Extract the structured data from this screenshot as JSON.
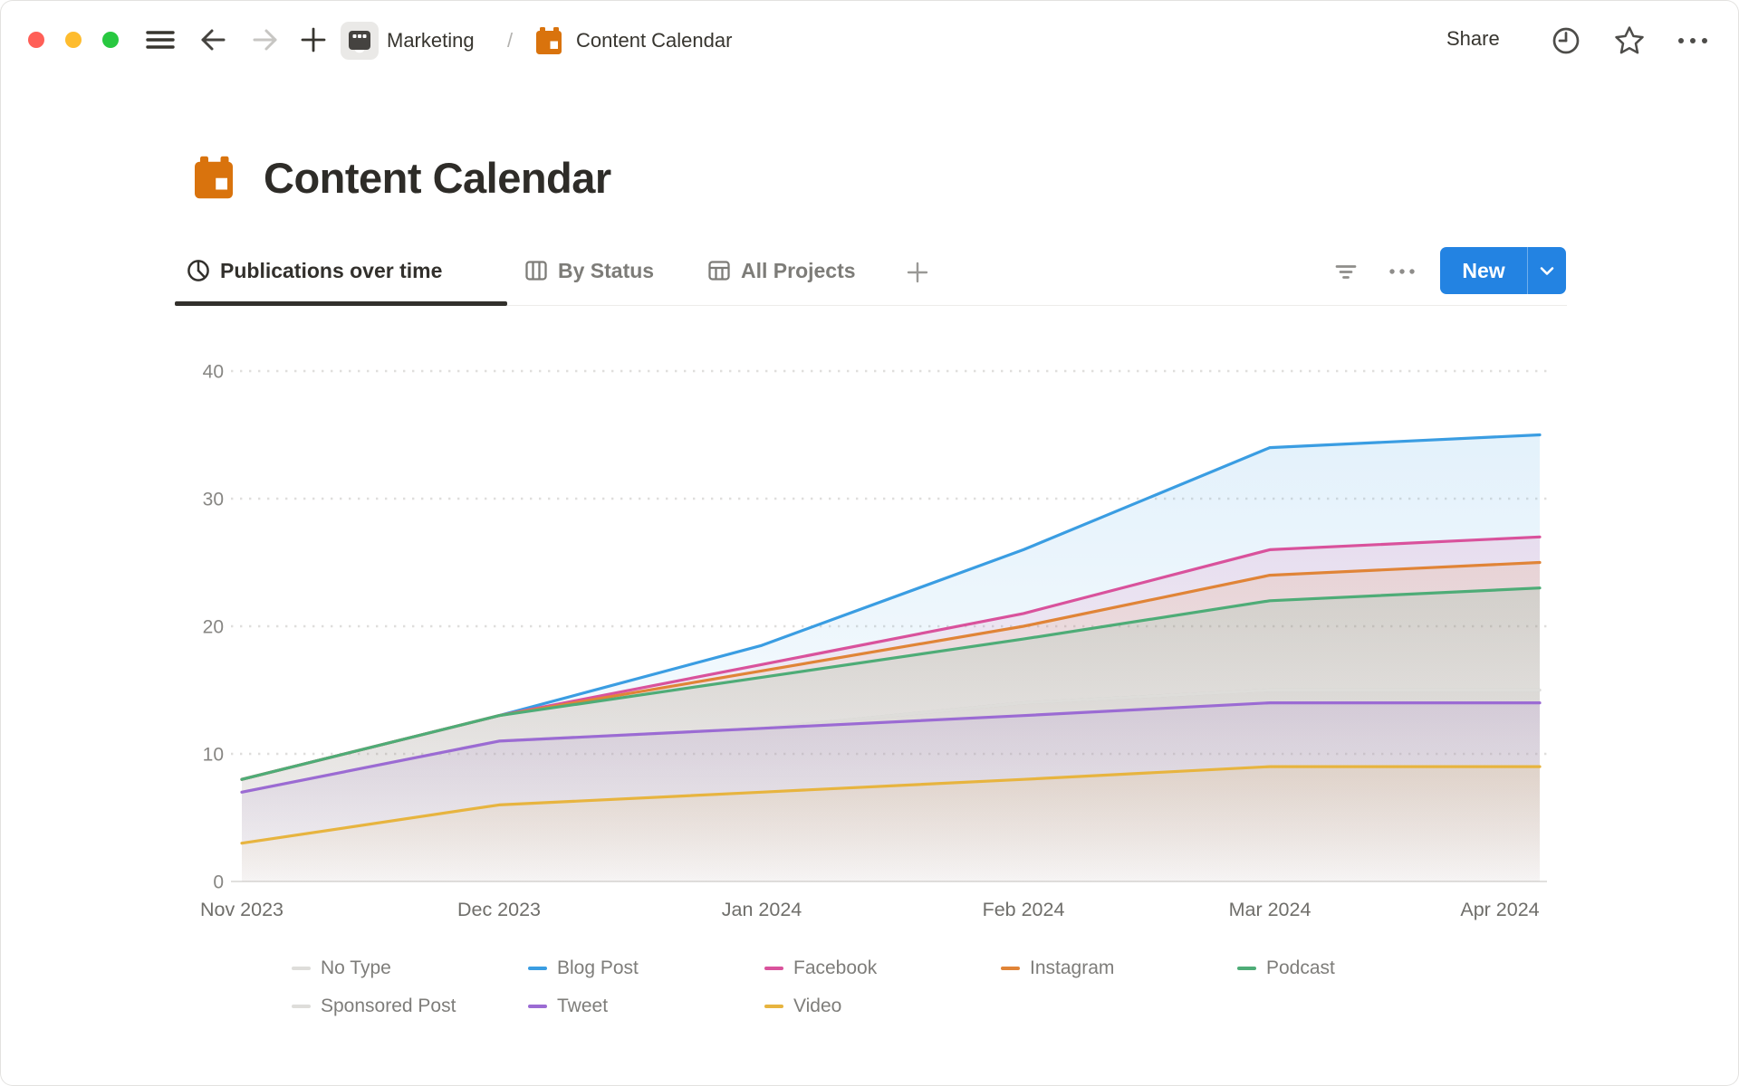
{
  "window": {
    "traffic_lights": [
      "#FF5F57",
      "#FEBC2E",
      "#28C840"
    ],
    "toolbar_icons": [
      "hamburger",
      "back-arrow",
      "forward-arrow",
      "plus",
      "marketing-page",
      "calendar"
    ],
    "topright_icons": [
      "history-clock",
      "star",
      "more-ellipsis"
    ]
  },
  "toolbar": {
    "breadcrumb": {
      "workspace": "Marketing",
      "separator": "/",
      "page": "Content Calendar"
    },
    "share_label": "Share"
  },
  "page": {
    "title": "Content Calendar",
    "title_icon": "orange-calendar",
    "icon_color": "#D9730D"
  },
  "tabs": [
    {
      "label": "Publications over time",
      "icon": "pie-chart",
      "active": true
    },
    {
      "label": "By Status",
      "icon": "board-columns",
      "active": false
    },
    {
      "label": "All Projects",
      "icon": "table-grid",
      "active": false
    }
  ],
  "actions": {
    "new_label": "New",
    "new_color": "#2383E2",
    "icons": [
      "filter",
      "more-ellipsis",
      "chevron-down"
    ]
  },
  "chart_data": {
    "type": "area",
    "title": "Publications over time",
    "x": [
      "Nov 2023",
      "Dec 2023",
      "Jan 2024",
      "Feb 2024",
      "Mar 2024",
      "Apr 2024"
    ],
    "xlabel": "",
    "ylabel": "",
    "ylim": [
      0,
      40
    ],
    "yticks": [
      0,
      10,
      20,
      30,
      40
    ],
    "grid": "dotted horizontal gridlines",
    "legend_position": "bottom",
    "series": [
      {
        "name": "No Type",
        "color": "#DEDDDA",
        "values": [
          7,
          11,
          12,
          14,
          15,
          15
        ]
      },
      {
        "name": "Blog Post",
        "color": "#3A9DE2",
        "values": [
          8,
          13,
          18.5,
          26,
          34,
          35
        ]
      },
      {
        "name": "Facebook",
        "color": "#D9529C",
        "values": [
          8,
          13,
          17,
          21,
          26,
          27
        ]
      },
      {
        "name": "Instagram",
        "color": "#E08437",
        "values": [
          8,
          13,
          16.5,
          20,
          24,
          25
        ]
      },
      {
        "name": "Podcast",
        "color": "#4EAC77",
        "values": [
          8,
          13,
          16,
          19,
          22,
          23
        ]
      },
      {
        "name": "Sponsored Post",
        "color": "#DEDDDA",
        "values": [
          7,
          11,
          12,
          14,
          15,
          15
        ]
      },
      {
        "name": "Tweet",
        "color": "#9B6BD3",
        "values": [
          7,
          11,
          12,
          13,
          14,
          14
        ]
      },
      {
        "name": "Video",
        "color": "#E7B43F",
        "values": [
          3,
          6,
          7,
          8,
          9,
          9
        ]
      }
    ]
  }
}
